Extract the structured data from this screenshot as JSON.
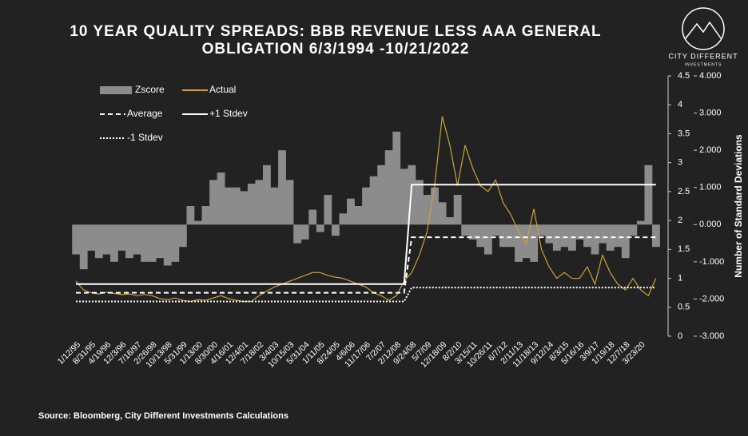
{
  "chart_data": {
    "type": "line",
    "title": [
      "10 YEAR QUALITY SPREADS: BBB REVENUE LESS AAA GENERAL",
      "OBLIGATION 6/3/1994 -10/21/2022"
    ],
    "y2_label": "Number of Standard Deviations",
    "source": "Source: Bloomberg, City Different Investments Calculations",
    "logo": [
      "CITY DIFFERENT",
      "INVESTMENTS"
    ],
    "categories": [
      "1/12/95",
      null,
      "8/31/95",
      null,
      "4/19/96",
      null,
      "12/3/96",
      null,
      "7/16/97",
      null,
      "2/26/98",
      null,
      "10/13/98",
      null,
      "5/31/99",
      null,
      "1/13/00",
      null,
      "8/30/00",
      null,
      "4/16/01",
      null,
      "12/4/01",
      null,
      "7/18/02",
      null,
      "3/4/03",
      null,
      "10/15/03",
      null,
      "5/31/04",
      null,
      "1/11/05",
      null,
      "8/24/05",
      null,
      "4/6/06",
      null,
      "11/17/06",
      null,
      "7/2/07",
      null,
      "2/12/08",
      null,
      "9/24/08",
      null,
      "5/7/09",
      null,
      "12/18/09",
      null,
      "8/2/10",
      null,
      "3/15/11",
      null,
      "10/26/11",
      null,
      "6/7/12",
      null,
      "2/11/13",
      null,
      "11/18/13",
      null,
      "9/12/14",
      null,
      "8/3/15",
      null,
      "5/16/16",
      null,
      "3/9/17",
      null,
      "1/19/18",
      null,
      "12/7/18",
      null,
      "3/23/20",
      null,
      null
    ],
    "series": [
      {
        "name": "Zscore",
        "kind": "area",
        "axis": "y2",
        "color": "#8c8c8c",
        "values": [
          -0.8,
          -1.2,
          -0.7,
          -0.9,
          -0.8,
          -1.0,
          -0.7,
          -0.9,
          -0.8,
          -1.0,
          -1.0,
          -0.9,
          -1.1,
          -1.0,
          -0.6,
          0.5,
          0.1,
          0.5,
          1.2,
          1.4,
          1.0,
          1.0,
          0.9,
          1.1,
          1.2,
          1.6,
          1.0,
          2.0,
          1.2,
          -0.5,
          -0.4,
          0.4,
          -0.2,
          0.8,
          -0.3,
          0.3,
          0.7,
          0.5,
          1.0,
          1.3,
          1.6,
          2.0,
          2.5,
          1.5,
          1.6,
          1.2,
          0.8,
          1.0,
          0.6,
          0.2,
          0.8,
          -0.3,
          -0.4,
          -0.6,
          -0.8,
          -0.3,
          -0.6,
          -0.6,
          -1.0,
          -0.9,
          -1.0,
          -0.3,
          -0.5,
          -0.7,
          -0.6,
          -0.7,
          -0.4,
          -0.6,
          -0.8,
          -0.5,
          -0.7,
          -0.6,
          -0.9,
          -0.3,
          0.1,
          1.6,
          -0.6
        ]
      },
      {
        "name": "Actual",
        "kind": "line",
        "axis": "y",
        "color": "#c9a43a",
        "values": [
          0.95,
          0.8,
          0.75,
          0.73,
          0.76,
          0.74,
          0.72,
          0.73,
          0.7,
          0.72,
          0.7,
          0.65,
          0.63,
          0.66,
          0.62,
          0.6,
          0.63,
          0.62,
          0.66,
          0.7,
          0.65,
          0.62,
          0.6,
          0.6,
          0.7,
          0.78,
          0.85,
          0.9,
          0.95,
          1.0,
          1.05,
          1.1,
          1.1,
          1.05,
          1.02,
          1.0,
          0.95,
          0.9,
          0.85,
          0.75,
          0.7,
          0.62,
          0.7,
          0.95,
          1.1,
          1.4,
          1.8,
          2.6,
          3.8,
          3.3,
          2.6,
          3.3,
          2.9,
          2.6,
          2.5,
          2.7,
          2.3,
          2.1,
          1.8,
          1.6,
          2.2,
          1.5,
          1.2,
          1.0,
          1.1,
          1.0,
          1.0,
          1.2,
          0.9,
          1.4,
          1.1,
          0.9,
          0.8,
          1.0,
          0.8,
          0.7,
          1.0
        ]
      },
      {
        "name": "Average",
        "kind": "line",
        "axis": "y",
        "color": "#ffffff",
        "dash": "6 4",
        "values": [
          0.75,
          0.75,
          0.75,
          0.75,
          0.75,
          0.75,
          0.75,
          0.75,
          0.75,
          0.75,
          0.75,
          0.75,
          0.75,
          0.75,
          0.75,
          0.75,
          0.75,
          0.75,
          0.75,
          0.75,
          0.75,
          0.75,
          0.75,
          0.75,
          0.75,
          0.75,
          0.75,
          0.75,
          0.75,
          0.75,
          0.75,
          0.75,
          0.75,
          0.75,
          0.75,
          0.75,
          0.75,
          0.75,
          0.75,
          0.75,
          0.75,
          0.75,
          0.75,
          0.75,
          1.71,
          1.71,
          1.71,
          1.71,
          1.71,
          1.71,
          1.71,
          1.71,
          1.71,
          1.71,
          1.71,
          1.71,
          1.71,
          1.71,
          1.71,
          1.71,
          1.71,
          1.71,
          1.71,
          1.71,
          1.71,
          1.71,
          1.71,
          1.71,
          1.71,
          1.71,
          1.71,
          1.71,
          1.71,
          1.71,
          1.71,
          1.71,
          1.71
        ]
      },
      {
        "name": "+1 Stdev",
        "kind": "line",
        "axis": "y",
        "color": "#ffffff",
        "dash": "none",
        "values": [
          0.9,
          0.9,
          0.9,
          0.9,
          0.9,
          0.9,
          0.9,
          0.9,
          0.9,
          0.9,
          0.9,
          0.9,
          0.9,
          0.9,
          0.9,
          0.9,
          0.9,
          0.9,
          0.9,
          0.9,
          0.9,
          0.9,
          0.9,
          0.9,
          0.9,
          0.9,
          0.9,
          0.9,
          0.9,
          0.9,
          0.9,
          0.9,
          0.9,
          0.9,
          0.9,
          0.9,
          0.9,
          0.9,
          0.9,
          0.9,
          0.9,
          0.9,
          0.9,
          0.9,
          2.62,
          2.62,
          2.62,
          2.62,
          2.62,
          2.62,
          2.62,
          2.62,
          2.62,
          2.62,
          2.62,
          2.62,
          2.62,
          2.62,
          2.62,
          2.62,
          2.62,
          2.62,
          2.62,
          2.62,
          2.62,
          2.62,
          2.62,
          2.62,
          2.62,
          2.62,
          2.62,
          2.62,
          2.62,
          2.62,
          2.62,
          2.62,
          2.62
        ]
      },
      {
        "name": "-1 Stdev",
        "kind": "line",
        "axis": "y",
        "color": "#ffffff",
        "dash": "2 2",
        "values": [
          0.6,
          0.6,
          0.6,
          0.6,
          0.6,
          0.6,
          0.6,
          0.6,
          0.6,
          0.6,
          0.6,
          0.6,
          0.6,
          0.6,
          0.6,
          0.6,
          0.6,
          0.6,
          0.6,
          0.6,
          0.6,
          0.6,
          0.6,
          0.6,
          0.6,
          0.6,
          0.6,
          0.6,
          0.6,
          0.6,
          0.6,
          0.6,
          0.6,
          0.6,
          0.6,
          0.6,
          0.6,
          0.6,
          0.6,
          0.6,
          0.6,
          0.6,
          0.6,
          0.6,
          0.84,
          0.84,
          0.84,
          0.84,
          0.84,
          0.84,
          0.84,
          0.84,
          0.84,
          0.84,
          0.84,
          0.84,
          0.84,
          0.84,
          0.84,
          0.84,
          0.84,
          0.84,
          0.84,
          0.84,
          0.84,
          0.84,
          0.84,
          0.84,
          0.84,
          0.84,
          0.84,
          0.84,
          0.84,
          0.84,
          0.84,
          0.84,
          0.84
        ]
      }
    ],
    "ylim": [
      0,
      4.5
    ],
    "yticks": [
      0,
      0.5,
      1,
      1.5,
      2,
      2.5,
      3,
      3.5,
      4,
      4.5
    ],
    "y2lim": [
      -3,
      4
    ],
    "y2ticks": [
      {
        "value": -3,
        "label": "-3.000"
      },
      {
        "value": -2,
        "label": "-2.000"
      },
      {
        "value": -1,
        "label": "-1.000"
      },
      {
        "value": 0,
        "label": "0.000"
      },
      {
        "value": 1,
        "label": "1.000"
      },
      {
        "value": 2,
        "label": "2.000"
      },
      {
        "value": 3,
        "label": "3.000"
      },
      {
        "value": 4,
        "label": "4.000"
      }
    ]
  }
}
